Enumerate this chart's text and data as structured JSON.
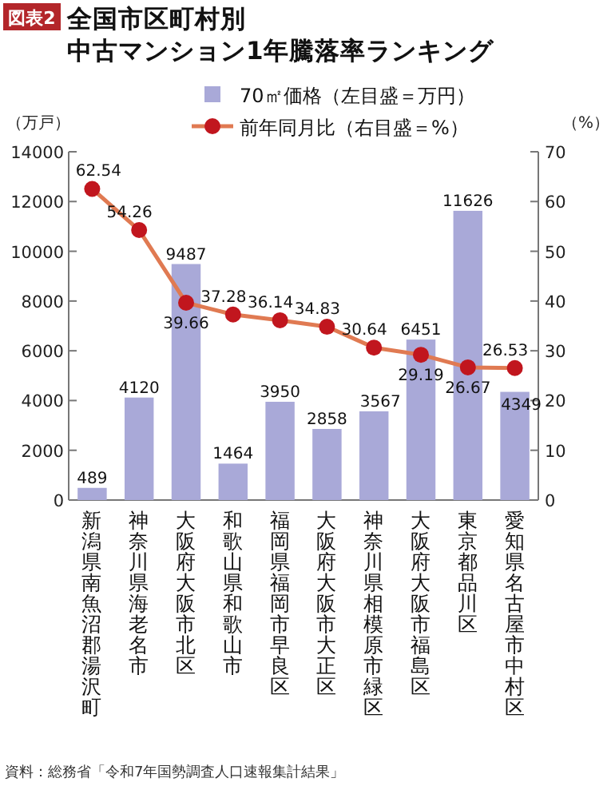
{
  "chart_data": {
    "type": "bar",
    "title": "全国市区町村別",
    "subtitle": "中古マンション1年騰落率ランキング",
    "categories": [
      "新潟県南魚沼郡湯沢町",
      "神奈川県海老名市",
      "大阪府大阪市北区",
      "和歌山県和歌山市",
      "福岡県福岡市早良区",
      "大阪府大阪市大正区",
      "神奈川県相模原市緑区",
      "大阪府大阪市福島区",
      "東京都品川区",
      "愛知県名古屋市中村区"
    ],
    "series": [
      {
        "name": "70㎡価格（左目盛＝万円）",
        "color": "#a9a9d8",
        "values": [
          489,
          4120,
          9487,
          1464,
          3950,
          2858,
          3567,
          6451,
          11626,
          4349
        ]
      },
      {
        "name": "前年同月比（右目盛＝%）",
        "type": "line",
        "axis": "y2",
        "color": "#e07a52",
        "marker": "circle",
        "values": [
          62.54,
          54.26,
          39.66,
          37.28,
          36.14,
          34.83,
          30.64,
          29.19,
          26.67,
          26.53
        ]
      }
    ],
    "ylabel": "（万戸）",
    "y2label": "（%）",
    "ylim": [
      0,
      14000
    ],
    "yticks": [
      0,
      2000,
      4000,
      6000,
      8000,
      10000,
      12000,
      14000
    ],
    "y2lim": [
      0,
      70
    ],
    "y2ticks": [
      0,
      10,
      20,
      30,
      40,
      50,
      60,
      70
    ],
    "data_labels": true,
    "legend": "top",
    "grid": false,
    "annotations": [
      "図表2",
      "資料：総務省「令和7年国勢調査人口速報集計結果」"
    ]
  }
}
